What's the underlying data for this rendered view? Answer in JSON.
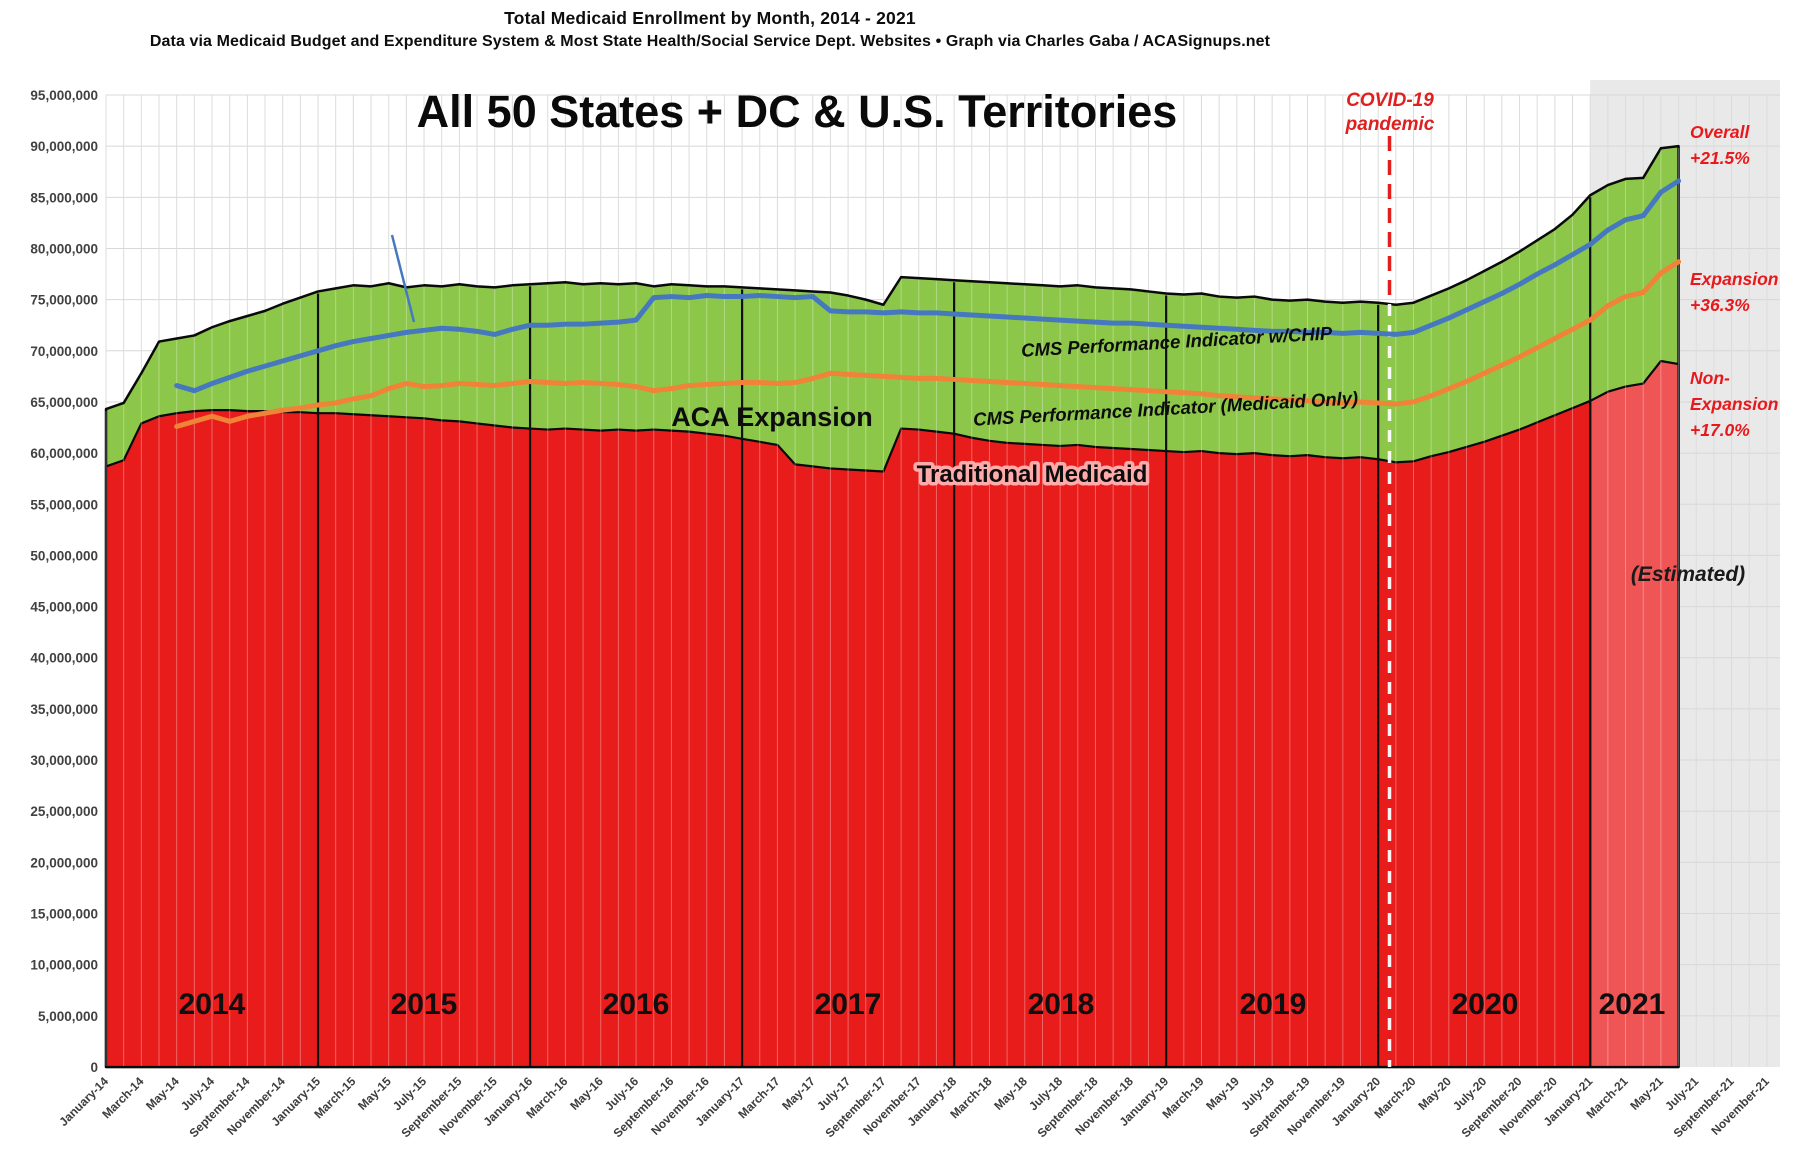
{
  "header": {
    "title": "Total Medicaid Enrollment by Month, 2014 - 2021",
    "subtitle": "Data via Medicaid Budget and Expenditure System & Most State Health/Social Service Dept. Websites  •  Graph via Charles Gaba / ACASignups.net"
  },
  "chart_data": {
    "type": "area",
    "title": "All 50 States + DC & U.S. Territories",
    "ylim": [
      0,
      95000000
    ],
    "ytick_step": 5000000,
    "grid": true,
    "y_tick_labels": [
      "0",
      "5,000,000",
      "10,000,000",
      "15,000,000",
      "20,000,000",
      "25,000,000",
      "30,000,000",
      "35,000,000",
      "40,000,000",
      "45,000,000",
      "50,000,000",
      "55,000,000",
      "60,000,000",
      "65,000,000",
      "70,000,000",
      "75,000,000",
      "80,000,000",
      "85,000,000",
      "90,000,000",
      "95,000,000"
    ],
    "x_tick_labels": [
      "January-14",
      "March-14",
      "May-14",
      "July-14",
      "September-14",
      "November-14",
      "January-15",
      "March-15",
      "May-15",
      "July-15",
      "September-15",
      "November-15",
      "January-16",
      "March-16",
      "May-16",
      "July-16",
      "September-16",
      "November-16",
      "January-17",
      "March-17",
      "May-17",
      "July-17",
      "September-17",
      "November-17",
      "January-18",
      "March-18",
      "May-18",
      "July-18",
      "September-18",
      "November-18",
      "January-19",
      "March-19",
      "May-19",
      "July-19",
      "September-19",
      "November-19",
      "January-20",
      "March-20",
      "May-20",
      "July-20",
      "September-20",
      "November-20",
      "January-21",
      "March-21",
      "May-21",
      "July-21",
      "September-21",
      "November-21"
    ],
    "year_labels": [
      "2014",
      "2015",
      "2016",
      "2017",
      "2018",
      "2019",
      "2020",
      "2021"
    ],
    "estimated_from_index": 84,
    "series": [
      {
        "name": "Overall (Traditional + ACA Expansion)",
        "role": "total-area",
        "color": "#8cc749",
        "values_millions": [
          64.3,
          64.9,
          67.8,
          70.9,
          71.2,
          71.5,
          72.3,
          72.9,
          73.4,
          73.9,
          74.6,
          75.2,
          75.8,
          76.1,
          76.4,
          76.3,
          76.6,
          76.2,
          76.4,
          76.3,
          76.5,
          76.3,
          76.2,
          76.4,
          76.5,
          76.6,
          76.7,
          76.5,
          76.6,
          76.5,
          76.6,
          76.3,
          76.5,
          76.4,
          76.3,
          76.3,
          76.2,
          76.1,
          76.0,
          75.9,
          75.8,
          75.7,
          75.4,
          75.0,
          74.5,
          77.2,
          77.1,
          77.0,
          76.9,
          76.8,
          76.7,
          76.6,
          76.5,
          76.4,
          76.3,
          76.4,
          76.2,
          76.1,
          76.0,
          75.8,
          75.6,
          75.5,
          75.6,
          75.3,
          75.2,
          75.3,
          75.0,
          74.9,
          75.0,
          74.8,
          74.7,
          74.8,
          74.7,
          74.5,
          74.7,
          75.4,
          76.1,
          76.9,
          77.8,
          78.7,
          79.7,
          80.8,
          81.9,
          83.3,
          85.2,
          86.2,
          86.8,
          86.9,
          89.8,
          90.0
        ]
      },
      {
        "name": "Traditional Medicaid",
        "role": "red-area",
        "color": "#e91c1c",
        "estimated_color": "#ef5555",
        "values_millions": [
          58.7,
          59.3,
          62.9,
          63.6,
          63.9,
          64.1,
          64.2,
          64.2,
          64.1,
          64.1,
          64.0,
          64.0,
          63.9,
          63.9,
          63.8,
          63.7,
          63.6,
          63.5,
          63.4,
          63.2,
          63.1,
          62.9,
          62.7,
          62.5,
          62.4,
          62.3,
          62.4,
          62.3,
          62.2,
          62.3,
          62.2,
          62.3,
          62.2,
          62.1,
          61.9,
          61.7,
          61.4,
          61.1,
          60.8,
          58.9,
          58.7,
          58.5,
          58.4,
          58.3,
          58.2,
          62.4,
          62.3,
          62.1,
          61.9,
          61.5,
          61.2,
          61.0,
          60.9,
          60.8,
          60.7,
          60.8,
          60.6,
          60.5,
          60.4,
          60.3,
          60.2,
          60.1,
          60.2,
          60.0,
          59.9,
          60.0,
          59.8,
          59.7,
          59.8,
          59.6,
          59.5,
          59.6,
          59.4,
          59.1,
          59.2,
          59.7,
          60.1,
          60.6,
          61.1,
          61.7,
          62.3,
          63.0,
          63.7,
          64.4,
          65.1,
          66.0,
          66.5,
          66.8,
          69.0,
          68.7
        ]
      },
      {
        "name": "CMS Performance Indicator w/CHIP",
        "role": "line",
        "color": "#4678c0",
        "start_index": 4,
        "values_millions": [
          66.6,
          66.1,
          66.8,
          67.4,
          68.0,
          68.5,
          69.0,
          69.5,
          70.0,
          70.5,
          70.9,
          71.2,
          71.5,
          71.8,
          72.0,
          72.2,
          72.1,
          71.9,
          71.6,
          72.1,
          72.5,
          72.5,
          72.6,
          72.6,
          72.7,
          72.8,
          73.0,
          75.2,
          75.3,
          75.2,
          75.4,
          75.3,
          75.3,
          75.4,
          75.3,
          75.2,
          75.3,
          73.9,
          73.8,
          73.8,
          73.7,
          73.8,
          73.7,
          73.7,
          73.6,
          73.5,
          73.4,
          73.3,
          73.2,
          73.1,
          73.0,
          72.9,
          72.8,
          72.7,
          72.7,
          72.6,
          72.5,
          72.4,
          72.3,
          72.2,
          72.1,
          72.0,
          71.9,
          71.9,
          71.8,
          71.8,
          71.7,
          71.8,
          71.7,
          71.6,
          71.8,
          72.5,
          73.2,
          74.0,
          74.8,
          75.6,
          76.5,
          77.5,
          78.4,
          79.4,
          80.4,
          81.8,
          82.8,
          83.2,
          85.5,
          86.6
        ]
      },
      {
        "name": "CMS Performance Indicator (Medicaid Only)",
        "role": "line",
        "color": "#f08337",
        "start_index": 4,
        "values_millions": [
          62.6,
          63.1,
          63.6,
          63.1,
          63.6,
          63.9,
          64.2,
          64.4,
          64.7,
          64.9,
          65.3,
          65.6,
          66.3,
          66.8,
          66.5,
          66.6,
          66.8,
          66.7,
          66.6,
          66.8,
          67.0,
          66.9,
          66.8,
          66.9,
          66.8,
          66.7,
          66.5,
          66.1,
          66.3,
          66.6,
          66.7,
          66.8,
          66.9,
          66.9,
          66.8,
          66.9,
          67.3,
          67.8,
          67.7,
          67.6,
          67.5,
          67.4,
          67.3,
          67.3,
          67.2,
          67.1,
          67.0,
          66.9,
          66.8,
          66.7,
          66.6,
          66.5,
          66.4,
          66.3,
          66.2,
          66.1,
          66.0,
          65.9,
          65.8,
          65.6,
          65.5,
          65.4,
          65.3,
          65.2,
          65.1,
          65.0,
          64.9,
          65.0,
          64.9,
          64.8,
          65.0,
          65.6,
          66.3,
          67.0,
          67.8,
          68.6,
          69.4,
          70.3,
          71.2,
          72.1,
          73.0,
          74.4,
          75.3,
          75.7,
          77.6,
          78.7
        ]
      }
    ],
    "annotations": {
      "aca_expansion": "ACA Expansion",
      "traditional": "Traditional Medicaid",
      "chip_line": "CMS Performance Indicator w/CHIP",
      "medicaid_only_line": "CMS Performance Indicator (Medicaid Only)",
      "covid": {
        "lines": [
          "COVID-19",
          "pandemic"
        ],
        "color": "#e01f1f"
      },
      "overall": {
        "lines": [
          "Overall",
          "+21.5%"
        ],
        "color": "#e8191c"
      },
      "expansion": {
        "lines": [
          "Expansion",
          "+36.3%"
        ],
        "color": "#e8191c"
      },
      "non_expansion": {
        "lines": [
          "Non-",
          "Expansion",
          "+17.0%"
        ],
        "color": "#e8191c"
      },
      "estimated": "(Estimated)"
    },
    "colors": {
      "grid": "#d8d8d8",
      "grid_vertical": "#dcdcdc",
      "estimated_band": "#e9e9e9",
      "outline": "#0a0a0a",
      "axis_text": "#414141"
    }
  }
}
